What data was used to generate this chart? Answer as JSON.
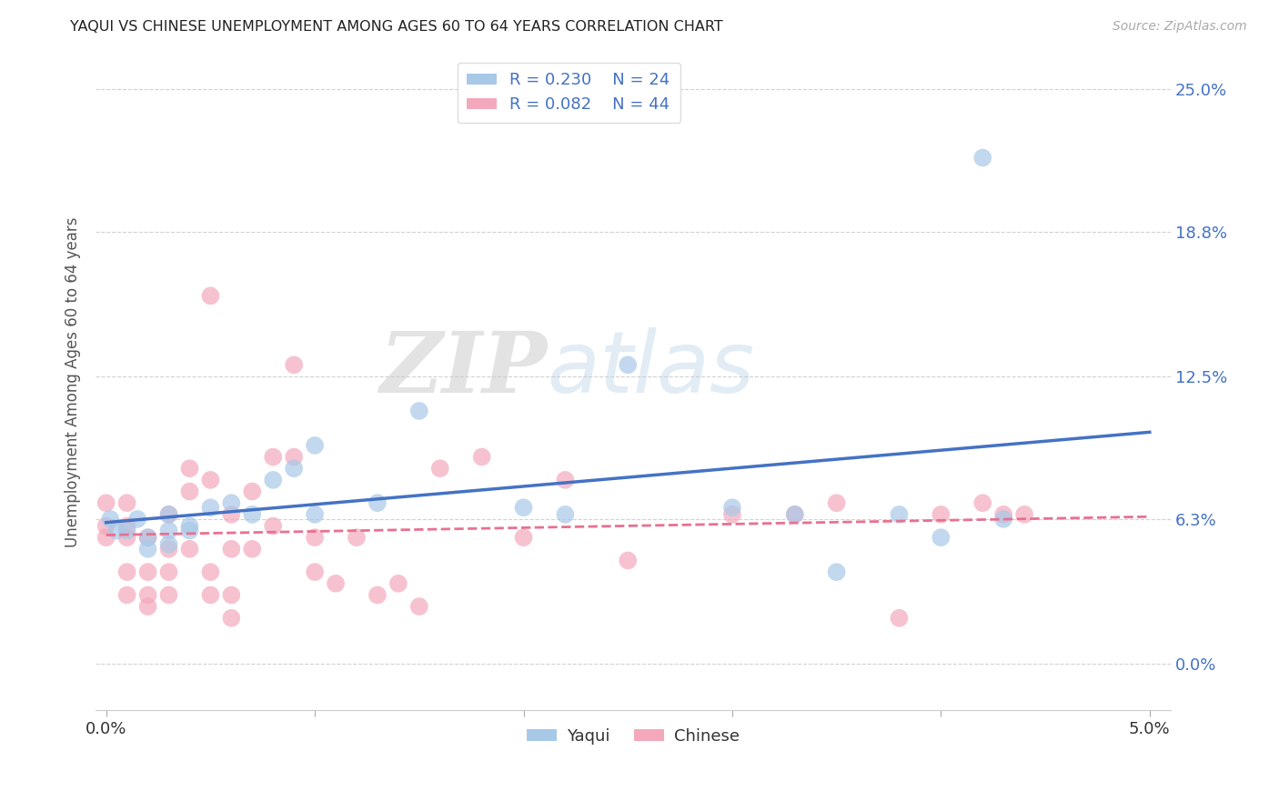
{
  "title": "YAQUI VS CHINESE UNEMPLOYMENT AMONG AGES 60 TO 64 YEARS CORRELATION CHART",
  "source": "Source: ZipAtlas.com",
  "ylabel": "Unemployment Among Ages 60 to 64 years",
  "xlim": [
    -0.0005,
    0.051
  ],
  "ylim": [
    -0.02,
    0.265
  ],
  "ytick_vals": [
    0.0,
    0.063,
    0.125,
    0.188,
    0.25
  ],
  "ytick_labels_right": [
    "0.0%",
    "6.3%",
    "12.5%",
    "18.8%",
    "25.0%"
  ],
  "xtick_vals": [
    0.0,
    0.01,
    0.02,
    0.03,
    0.04,
    0.05
  ],
  "xtick_labels": [
    "0.0%",
    "",
    "",
    "",
    "",
    "5.0%"
  ],
  "yaqui_color": "#a8c8e8",
  "chinese_color": "#f4a8bc",
  "yaqui_line_color": "#4472c4",
  "chinese_line_color": "#e87090",
  "background_color": "#ffffff",
  "grid_color": "#cccccc",
  "watermark_zip": "ZIP",
  "watermark_atlas": "atlas",
  "yaqui_x": [
    0.0002,
    0.0005,
    0.001,
    0.0015,
    0.002,
    0.002,
    0.003,
    0.003,
    0.003,
    0.004,
    0.004,
    0.005,
    0.006,
    0.007,
    0.008,
    0.009,
    0.01,
    0.01,
    0.013,
    0.015,
    0.02,
    0.022,
    0.025,
    0.03,
    0.033,
    0.035,
    0.038,
    0.04,
    0.042,
    0.043
  ],
  "yaqui_y": [
    0.063,
    0.058,
    0.058,
    0.063,
    0.055,
    0.05,
    0.058,
    0.052,
    0.065,
    0.06,
    0.058,
    0.068,
    0.07,
    0.065,
    0.08,
    0.085,
    0.065,
    0.095,
    0.07,
    0.11,
    0.068,
    0.065,
    0.13,
    0.068,
    0.065,
    0.04,
    0.065,
    0.055,
    0.22,
    0.063
  ],
  "chinese_x": [
    0.0,
    0.0,
    0.0,
    0.001,
    0.001,
    0.001,
    0.001,
    0.001,
    0.002,
    0.002,
    0.002,
    0.002,
    0.003,
    0.003,
    0.003,
    0.003,
    0.004,
    0.004,
    0.004,
    0.005,
    0.005,
    0.005,
    0.005,
    0.006,
    0.006,
    0.006,
    0.006,
    0.007,
    0.007,
    0.008,
    0.008,
    0.009,
    0.009,
    0.01,
    0.01,
    0.011,
    0.012,
    0.013,
    0.014,
    0.015,
    0.016,
    0.018,
    0.02,
    0.022,
    0.025,
    0.03,
    0.033,
    0.035,
    0.038,
    0.04,
    0.042,
    0.043,
    0.044
  ],
  "chinese_y": [
    0.06,
    0.055,
    0.07,
    0.07,
    0.06,
    0.055,
    0.04,
    0.03,
    0.055,
    0.04,
    0.03,
    0.025,
    0.065,
    0.05,
    0.04,
    0.03,
    0.085,
    0.075,
    0.05,
    0.16,
    0.08,
    0.04,
    0.03,
    0.065,
    0.05,
    0.03,
    0.02,
    0.075,
    0.05,
    0.09,
    0.06,
    0.13,
    0.09,
    0.055,
    0.04,
    0.035,
    0.055,
    0.03,
    0.035,
    0.025,
    0.085,
    0.09,
    0.055,
    0.08,
    0.045,
    0.065,
    0.065,
    0.07,
    0.02,
    0.065,
    0.07,
    0.065,
    0.065
  ]
}
